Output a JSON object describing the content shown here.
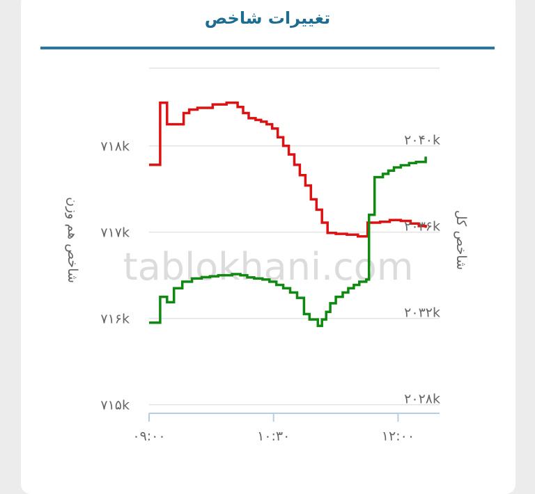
{
  "header": {
    "title": "تغییرات شاخص"
  },
  "watermark": "tablokhani.com",
  "chart_data": {
    "type": "line",
    "title": "تغییرات شاخص",
    "x_ticks": [
      {
        "value": 540,
        "label": "۰۹:۰۰"
      },
      {
        "value": 630,
        "label": "۱۰:۳۰"
      },
      {
        "value": 720,
        "label": "۱۲:۰۰"
      }
    ],
    "xlim": [
      540,
      750
    ],
    "grid": true,
    "left_axis": {
      "title": "شاخص هم وزن",
      "ylim": [
        714900,
        718900
      ],
      "ticks": [
        {
          "value": 715000,
          "label": "۷۱۵k"
        },
        {
          "value": 716000,
          "label": "۷۱۶k"
        },
        {
          "value": 717000,
          "label": "۷۱۷k"
        },
        {
          "value": 718000,
          "label": "۷۱۸k"
        }
      ]
    },
    "right_axis": {
      "title": "شاخص کل",
      "ylim": [
        2027600,
        2043600
      ],
      "ticks": [
        {
          "value": 2028000,
          "label": "۲۰۲۸k"
        },
        {
          "value": 2032000,
          "label": "۲۰۳۲k"
        },
        {
          "value": 2036000,
          "label": "۲۰۳۶k"
        },
        {
          "value": 2040000,
          "label": "۲۰۴۰k"
        }
      ]
    },
    "series": [
      {
        "axis": "left",
        "color": "#dd1111",
        "points": [
          [
            540,
            717780
          ],
          [
            548,
            717780
          ],
          [
            548,
            718500
          ],
          [
            553,
            718500
          ],
          [
            553,
            718250
          ],
          [
            565,
            718250
          ],
          [
            565,
            718380
          ],
          [
            569,
            718380
          ],
          [
            569,
            718420
          ],
          [
            575,
            718420
          ],
          [
            575,
            718440
          ],
          [
            581,
            718440
          ],
          [
            581,
            718440
          ],
          [
            586,
            718440
          ],
          [
            586,
            718480
          ],
          [
            596,
            718480
          ],
          [
            596,
            718500
          ],
          [
            604,
            718500
          ],
          [
            604,
            718450
          ],
          [
            608,
            718450
          ],
          [
            608,
            718380
          ],
          [
            612,
            718380
          ],
          [
            612,
            718320
          ],
          [
            617,
            718320
          ],
          [
            617,
            718300
          ],
          [
            621,
            718300
          ],
          [
            621,
            718280
          ],
          [
            625,
            718280
          ],
          [
            625,
            718250
          ],
          [
            629,
            718250
          ],
          [
            629,
            718200
          ],
          [
            633,
            718200
          ],
          [
            633,
            718100
          ],
          [
            637,
            718100
          ],
          [
            637,
            718000
          ],
          [
            641,
            718000
          ],
          [
            641,
            717900
          ],
          [
            645,
            717900
          ],
          [
            645,
            717780
          ],
          [
            649,
            717780
          ],
          [
            649,
            717660
          ],
          [
            653,
            717660
          ],
          [
            653,
            717540
          ],
          [
            657,
            717540
          ],
          [
            657,
            717380
          ],
          [
            661,
            717380
          ],
          [
            661,
            717260
          ],
          [
            665,
            717260
          ],
          [
            665,
            717110
          ],
          [
            669,
            717110
          ],
          [
            669,
            716990
          ],
          [
            670,
            716990
          ],
          [
            670,
            716990
          ],
          [
            675,
            716990
          ],
          [
            675,
            716980
          ],
          [
            683,
            716980
          ],
          [
            683,
            716970
          ],
          [
            691,
            716970
          ],
          [
            691,
            716950
          ],
          [
            698,
            716950
          ],
          [
            698,
            717110
          ],
          [
            707,
            717110
          ],
          [
            707,
            717120
          ],
          [
            714,
            717120
          ],
          [
            714,
            717140
          ],
          [
            722,
            717140
          ],
          [
            722,
            717130
          ],
          [
            729,
            717130
          ],
          [
            729,
            717100
          ],
          [
            735,
            717100
          ],
          [
            735,
            717070
          ],
          [
            740,
            717070
          ],
          [
            740,
            717050
          ]
        ]
      },
      {
        "axis": "right",
        "color": "#118811",
        "points": [
          [
            540,
            2031800
          ],
          [
            548,
            2031800
          ],
          [
            548,
            2033000
          ],
          [
            553,
            2033000
          ],
          [
            553,
            2032750
          ],
          [
            558,
            2032750
          ],
          [
            558,
            2033400
          ],
          [
            564,
            2033400
          ],
          [
            564,
            2033700
          ],
          [
            571,
            2033700
          ],
          [
            571,
            2033850
          ],
          [
            578,
            2033850
          ],
          [
            578,
            2033910
          ],
          [
            584,
            2033910
          ],
          [
            584,
            2033950
          ],
          [
            590,
            2033950
          ],
          [
            590,
            2034000
          ],
          [
            600,
            2034000
          ],
          [
            600,
            2034050
          ],
          [
            606,
            2034050
          ],
          [
            606,
            2034000
          ],
          [
            611,
            2034000
          ],
          [
            611,
            2033900
          ],
          [
            616,
            2033900
          ],
          [
            616,
            2033850
          ],
          [
            622,
            2033850
          ],
          [
            622,
            2033800
          ],
          [
            627,
            2033800
          ],
          [
            627,
            2033700
          ],
          [
            632,
            2033700
          ],
          [
            632,
            2033550
          ],
          [
            637,
            2033550
          ],
          [
            637,
            2033400
          ],
          [
            642,
            2033400
          ],
          [
            642,
            2033200
          ],
          [
            647,
            2033200
          ],
          [
            647,
            2032950
          ],
          [
            652,
            2032950
          ],
          [
            652,
            2032200
          ],
          [
            656,
            2032200
          ],
          [
            656,
            2031950
          ],
          [
            662,
            2031950
          ],
          [
            662,
            2031650
          ],
          [
            665,
            2031650
          ],
          [
            665,
            2031950
          ],
          [
            668,
            2031950
          ],
          [
            668,
            2032300
          ],
          [
            671,
            2032300
          ],
          [
            671,
            2032700
          ],
          [
            675,
            2032700
          ],
          [
            675,
            2033000
          ],
          [
            680,
            2033000
          ],
          [
            680,
            2033200
          ],
          [
            684,
            2033200
          ],
          [
            684,
            2033400
          ],
          [
            688,
            2033400
          ],
          [
            688,
            2033550
          ],
          [
            692,
            2033550
          ],
          [
            692,
            2033700
          ],
          [
            697,
            2033700
          ],
          [
            697,
            2033800
          ],
          [
            699,
            2033800
          ],
          [
            699,
            2036800
          ],
          [
            703,
            2036800
          ],
          [
            703,
            2038550
          ],
          [
            709,
            2038550
          ],
          [
            709,
            2038700
          ],
          [
            713,
            2038700
          ],
          [
            713,
            2038850
          ],
          [
            717,
            2038850
          ],
          [
            717,
            2039000
          ],
          [
            722,
            2039000
          ],
          [
            722,
            2039100
          ],
          [
            728,
            2039100
          ],
          [
            728,
            2039200
          ],
          [
            733,
            2039200
          ],
          [
            733,
            2039250
          ],
          [
            740,
            2039250
          ],
          [
            740,
            2039500
          ]
        ]
      }
    ]
  }
}
